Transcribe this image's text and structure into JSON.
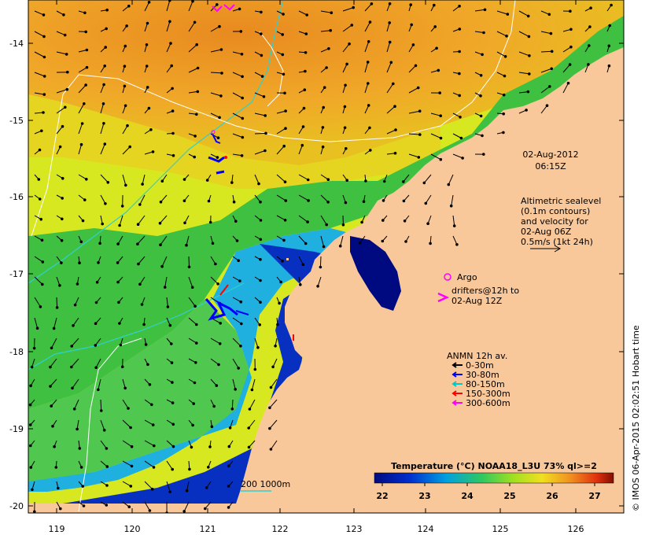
{
  "map": {
    "timestamp_date": "02-Aug-2012",
    "timestamp_time": "06:15Z",
    "altimetry_lines": [
      "Altimetric sealevel",
      "(0.1m contours)",
      "and velocity for",
      "02-Aug 06Z",
      "0.5m/s (1kt 24h)"
    ],
    "argo_label": "Argo",
    "drifters_lines": [
      "drifters@12h to",
      "02-Aug 12Z"
    ],
    "anmn_title": "ANMN 12h av.",
    "anmn_items": [
      {
        "label": "0-30m",
        "color": "#000000"
      },
      {
        "label": "30-80m",
        "color": "#0000ff"
      },
      {
        "label": "80-150m",
        "color": "#00c8c8"
      },
      {
        "label": "150-300m",
        "color": "#ff0000"
      },
      {
        "label": "300-600m",
        "color": "#ff00ff"
      }
    ],
    "bathy_label": "200  1000m",
    "colorbar_title": "Temperature (°C) NOAA18_L3U 73% ql>=2",
    "colorbar_ticks": [
      "22",
      "23",
      "24",
      "25",
      "26",
      "27"
    ],
    "credit": "© IMOS 06-Apr-2015 02:02:51 Hobart time",
    "lon_ticks": [
      "119",
      "120",
      "121",
      "122",
      "123",
      "124",
      "125",
      "126"
    ],
    "lat_ticks": [
      "-14",
      "-15",
      "-16",
      "-17",
      "-18",
      "-19",
      "-20"
    ],
    "colors": {
      "land": "#f9c89a",
      "warm": "#f0a020",
      "mid_warm": "#e8c020",
      "yellow": "#d8e820",
      "green": "#40c040",
      "cyan": "#20b0e0",
      "blue": "#1040d0",
      "deep_blue": "#000a80"
    }
  }
}
